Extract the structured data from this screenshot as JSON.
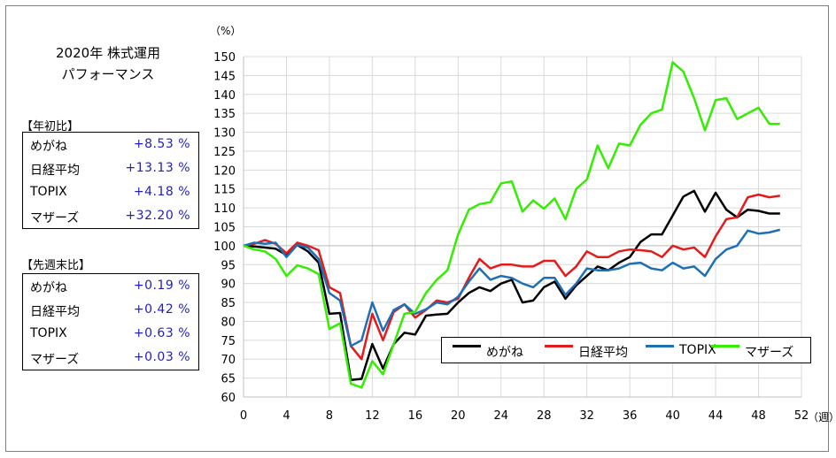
{
  "panel": {
    "title_line1": "2020年 株式運用",
    "title_line2": "パフォーマンス"
  },
  "ytd": {
    "label": "【年初比】",
    "rows": [
      {
        "name": "めがね",
        "value": "+8.53 %"
      },
      {
        "name": "日経平均",
        "value": "+13.13 %"
      },
      {
        "name": "TOPIX",
        "value": "+4.18 %"
      },
      {
        "name": "マザーズ",
        "value": "+32.20 %"
      }
    ]
  },
  "wow": {
    "label": "【先週末比】",
    "rows": [
      {
        "name": "めがね",
        "value": "+0.19 %"
      },
      {
        "name": "日経平均",
        "value": "+0.42 %"
      },
      {
        "name": "TOPIX",
        "value": "+0.63 %"
      },
      {
        "name": "マザーズ",
        "value": "+0.03 %"
      }
    ]
  },
  "chart_data": {
    "type": "line",
    "ylabel": "（%）",
    "xlabel": "（週）",
    "ylim": [
      60,
      150
    ],
    "xlim": [
      0,
      52
    ],
    "yticks": [
      60,
      65,
      70,
      75,
      80,
      85,
      90,
      95,
      100,
      105,
      110,
      115,
      120,
      125,
      130,
      135,
      140,
      145,
      150
    ],
    "xticks": [
      0,
      4,
      8,
      12,
      16,
      20,
      24,
      28,
      32,
      36,
      40,
      44,
      48,
      52
    ],
    "grid": true,
    "legend_position": "bottom-right",
    "x": [
      0,
      1,
      2,
      3,
      4,
      5,
      6,
      7,
      8,
      9,
      10,
      11,
      12,
      13,
      14,
      15,
      16,
      17,
      18,
      19,
      20,
      21,
      22,
      23,
      24,
      25,
      26,
      27,
      28,
      29,
      30,
      31,
      32,
      33,
      34,
      35,
      36,
      37,
      38,
      39,
      40,
      41,
      42,
      43,
      44,
      45,
      46,
      47,
      48,
      49,
      50
    ],
    "series": [
      {
        "name": "めがね",
        "color": "#000000",
        "values": [
          100,
          99.8,
          99.5,
          99.2,
          97.5,
          100.2,
          98.5,
          95.5,
          82,
          82.2,
          64.5,
          64.8,
          74,
          67.5,
          74,
          77,
          76.5,
          81.5,
          81.8,
          82,
          85,
          87.5,
          89,
          88,
          90,
          91,
          85,
          85.5,
          89,
          90.5,
          86,
          89.5,
          92,
          94.5,
          93.5,
          95.5,
          97,
          101,
          103,
          103,
          108,
          113,
          114.5,
          109,
          114,
          109.5,
          107.5,
          109.5,
          109.2,
          108.5,
          108.5
        ]
      },
      {
        "name": "日経平均",
        "color": "#e51a1a",
        "values": [
          100,
          100.5,
          101.5,
          100.5,
          98,
          100.8,
          100,
          98.8,
          89,
          87.5,
          73.5,
          70,
          82,
          75,
          82.5,
          84.5,
          81,
          83,
          85.5,
          85,
          86,
          91.5,
          96.5,
          94,
          95,
          95,
          94.5,
          94.5,
          96,
          96,
          92,
          94.5,
          98.5,
          97,
          97,
          98.5,
          99,
          98.8,
          98.5,
          97,
          100,
          99,
          99.5,
          97,
          102.5,
          107,
          107.5,
          112.8,
          113.5,
          112.8,
          113.2
        ]
      },
      {
        "name": "TOPIX",
        "color": "#1f6fb5",
        "values": [
          100,
          100.8,
          100.5,
          100.8,
          97,
          100.2,
          99.5,
          96.5,
          87.5,
          85.5,
          73.5,
          75,
          85,
          77.5,
          83,
          84.5,
          82,
          83.2,
          85,
          84.5,
          86.5,
          90.5,
          94,
          91,
          92,
          91.5,
          90,
          89,
          91.5,
          91.5,
          87,
          90,
          94,
          93.5,
          93.5,
          94,
          95.2,
          95.5,
          94,
          93.5,
          95.5,
          94,
          94.5,
          92,
          96.5,
          99,
          100,
          104,
          103.2,
          103.5,
          104.2
        ]
      },
      {
        "name": "マザーズ",
        "color": "#33ee00",
        "values": [
          100,
          99,
          98.5,
          96.5,
          92,
          94.8,
          94,
          92.5,
          78,
          79.5,
          63.5,
          62.5,
          69.5,
          66,
          74,
          82,
          82.5,
          87.5,
          91,
          93.5,
          103,
          109.5,
          111,
          111.5,
          116.5,
          117,
          109,
          112,
          109.8,
          112.5,
          107,
          115,
          117.5,
          126.5,
          120.5,
          127,
          126.5,
          132,
          135,
          136,
          148.5,
          146,
          139,
          130.5,
          138.5,
          139,
          133.5,
          135,
          136.5,
          132.2,
          132.2
        ]
      }
    ]
  }
}
